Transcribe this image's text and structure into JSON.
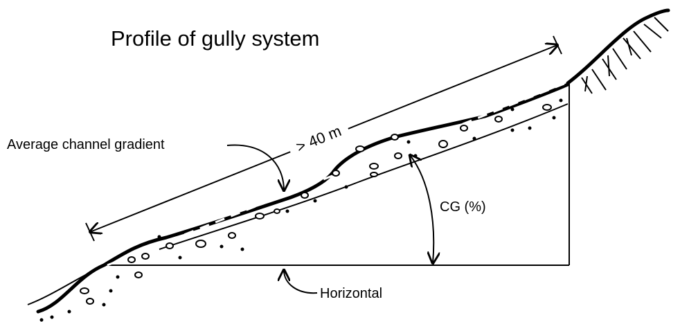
{
  "title": "Profile of gully system",
  "labels": {
    "gradient": "Average channel gradient",
    "length": "> 40 m",
    "angle": "CG (%)",
    "horizontal": "Horizontal"
  }
}
